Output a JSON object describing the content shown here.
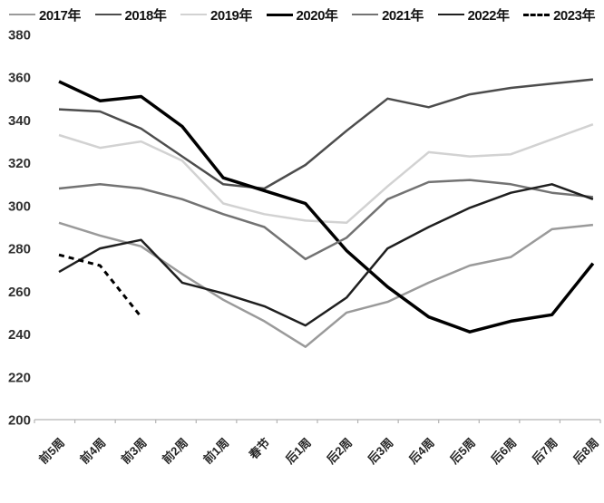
{
  "chart_data": {
    "type": "line",
    "title": "",
    "xlabel": "",
    "ylabel": "",
    "ylim": [
      200,
      380
    ],
    "ytick_step": 20,
    "yticks": [
      380,
      360,
      340,
      320,
      300,
      280,
      260,
      240,
      220,
      200
    ],
    "grid": false,
    "legend_position": "top",
    "categories": [
      "前5周",
      "前4周",
      "前3周",
      "前2周",
      "前1周",
      "春节",
      "后1周",
      "后2周",
      "后3周",
      "后4周",
      "后5周",
      "后6周",
      "后7周",
      "后8周"
    ],
    "series": [
      {
        "name": "2017年",
        "color": "#9a9a9a",
        "width": 2.5,
        "dash": null,
        "values": [
          292,
          286,
          281,
          268,
          256,
          246,
          234,
          250,
          255,
          264,
          272,
          276,
          289,
          291
        ]
      },
      {
        "name": "2018年",
        "color": "#4d4d4d",
        "width": 2.5,
        "dash": null,
        "values": [
          345,
          344,
          336,
          323,
          310,
          308,
          319,
          335,
          350,
          346,
          352,
          355,
          357,
          359
        ]
      },
      {
        "name": "2019年",
        "color": "#d2d2d2",
        "width": 2.5,
        "dash": null,
        "values": [
          333,
          327,
          330,
          321,
          301,
          296,
          293,
          292,
          309,
          325,
          323,
          324,
          331,
          338
        ]
      },
      {
        "name": "2020年",
        "color": "#000000",
        "width": 3.5,
        "dash": null,
        "values": [
          358,
          349,
          351,
          337,
          313,
          307,
          301,
          279,
          262,
          248,
          241,
          246,
          249,
          273
        ]
      },
      {
        "name": "2021年",
        "color": "#737373",
        "width": 2.5,
        "dash": null,
        "values": [
          308,
          310,
          308,
          303,
          296,
          290,
          275,
          285,
          303,
          311,
          312,
          310,
          306,
          304
        ]
      },
      {
        "name": "2022年",
        "color": "#1f1f1f",
        "width": 2.5,
        "dash": null,
        "values": [
          269,
          280,
          284,
          264,
          259,
          253,
          244,
          257,
          280,
          290,
          299,
          306,
          310,
          303
        ]
      },
      {
        "name": "2023年",
        "color": "#000000",
        "width": 3,
        "dash": "6,5",
        "values": [
          277,
          272,
          248,
          null,
          null,
          null,
          null,
          null,
          null,
          null,
          null,
          null,
          null,
          null
        ]
      }
    ],
    "axis_color": "#b3b3b3"
  }
}
